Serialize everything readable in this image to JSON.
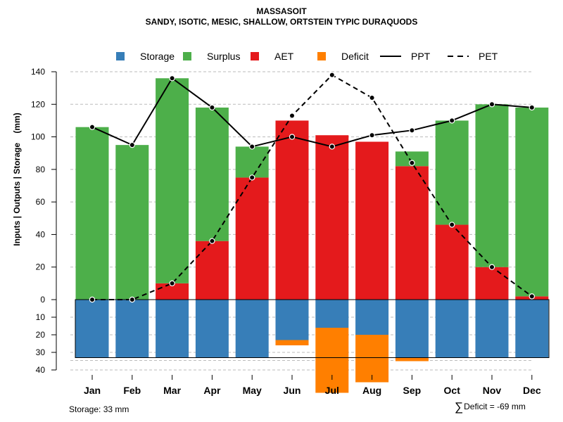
{
  "title": "MASSASOIT",
  "subtitle": "SANDY, ISOTIC, MESIC, SHALLOW, ORTSTEIN TYPIC DURAQUODS",
  "storage_note": "Storage: 33 mm",
  "deficit_symbol": "∑",
  "deficit_note": "Deficit = -69 mm",
  "colors": {
    "storage": "#377eb8",
    "surplus": "#4daf4a",
    "aet": "#e41a1c",
    "deficit": "#ff7f00",
    "grid": "#bbbbbb"
  },
  "chart_data": {
    "type": "bar",
    "title": "MASSASOIT",
    "subtitle": "SANDY, ISOTIC, MESIC, SHALLOW, ORTSTEIN TYPIC DURAQUODS",
    "ylabel": "Inputs | Outputs | Storage    (mm)",
    "xlabel": "",
    "categories": [
      "Jan",
      "Feb",
      "Mar",
      "Apr",
      "May",
      "Jun",
      "Jul",
      "Aug",
      "Sep",
      "Oct",
      "Nov",
      "Dec"
    ],
    "ylim": [
      0,
      140
    ],
    "yticks": [
      "0",
      "20",
      "40",
      "60",
      "80",
      "100",
      "120",
      "140"
    ],
    "lower_ylim": [
      0,
      40
    ],
    "lower_yticks": [
      "10",
      "20",
      "30",
      "40"
    ],
    "storage_capacity": 33,
    "legend_position": "top",
    "legend": [
      {
        "label": "Storage",
        "type": "box",
        "key": "storage"
      },
      {
        "label": "Surplus",
        "type": "box",
        "key": "surplus"
      },
      {
        "label": "AET",
        "type": "box",
        "key": "aet"
      },
      {
        "label": "Deficit",
        "type": "box",
        "key": "deficit"
      },
      {
        "label": "PPT",
        "type": "line",
        "dash": false
      },
      {
        "label": "PET",
        "type": "line",
        "dash": true
      }
    ],
    "series": [
      {
        "name": "AET",
        "values": [
          0,
          0,
          10,
          36,
          75,
          110,
          101,
          97,
          82,
          46,
          20,
          2
        ]
      },
      {
        "name": "Surplus",
        "values": [
          106,
          95,
          126,
          82,
          19,
          0,
          0,
          0,
          9,
          64,
          100,
          116
        ]
      },
      {
        "name": "Storage",
        "values": [
          33,
          33,
          33,
          33,
          33,
          23,
          16,
          20,
          33,
          33,
          33,
          33
        ]
      },
      {
        "name": "Deficit",
        "values": [
          0,
          0,
          0,
          0,
          0,
          3,
          37,
          27,
          2,
          0,
          0,
          0
        ]
      },
      {
        "name": "PPT",
        "values": [
          106,
          95,
          136,
          118,
          94,
          100,
          94,
          101,
          104,
          110,
          120,
          118
        ]
      },
      {
        "name": "PET",
        "values": [
          0,
          0,
          10,
          36,
          75,
          113,
          138,
          124,
          84,
          46,
          20,
          2
        ]
      }
    ]
  }
}
